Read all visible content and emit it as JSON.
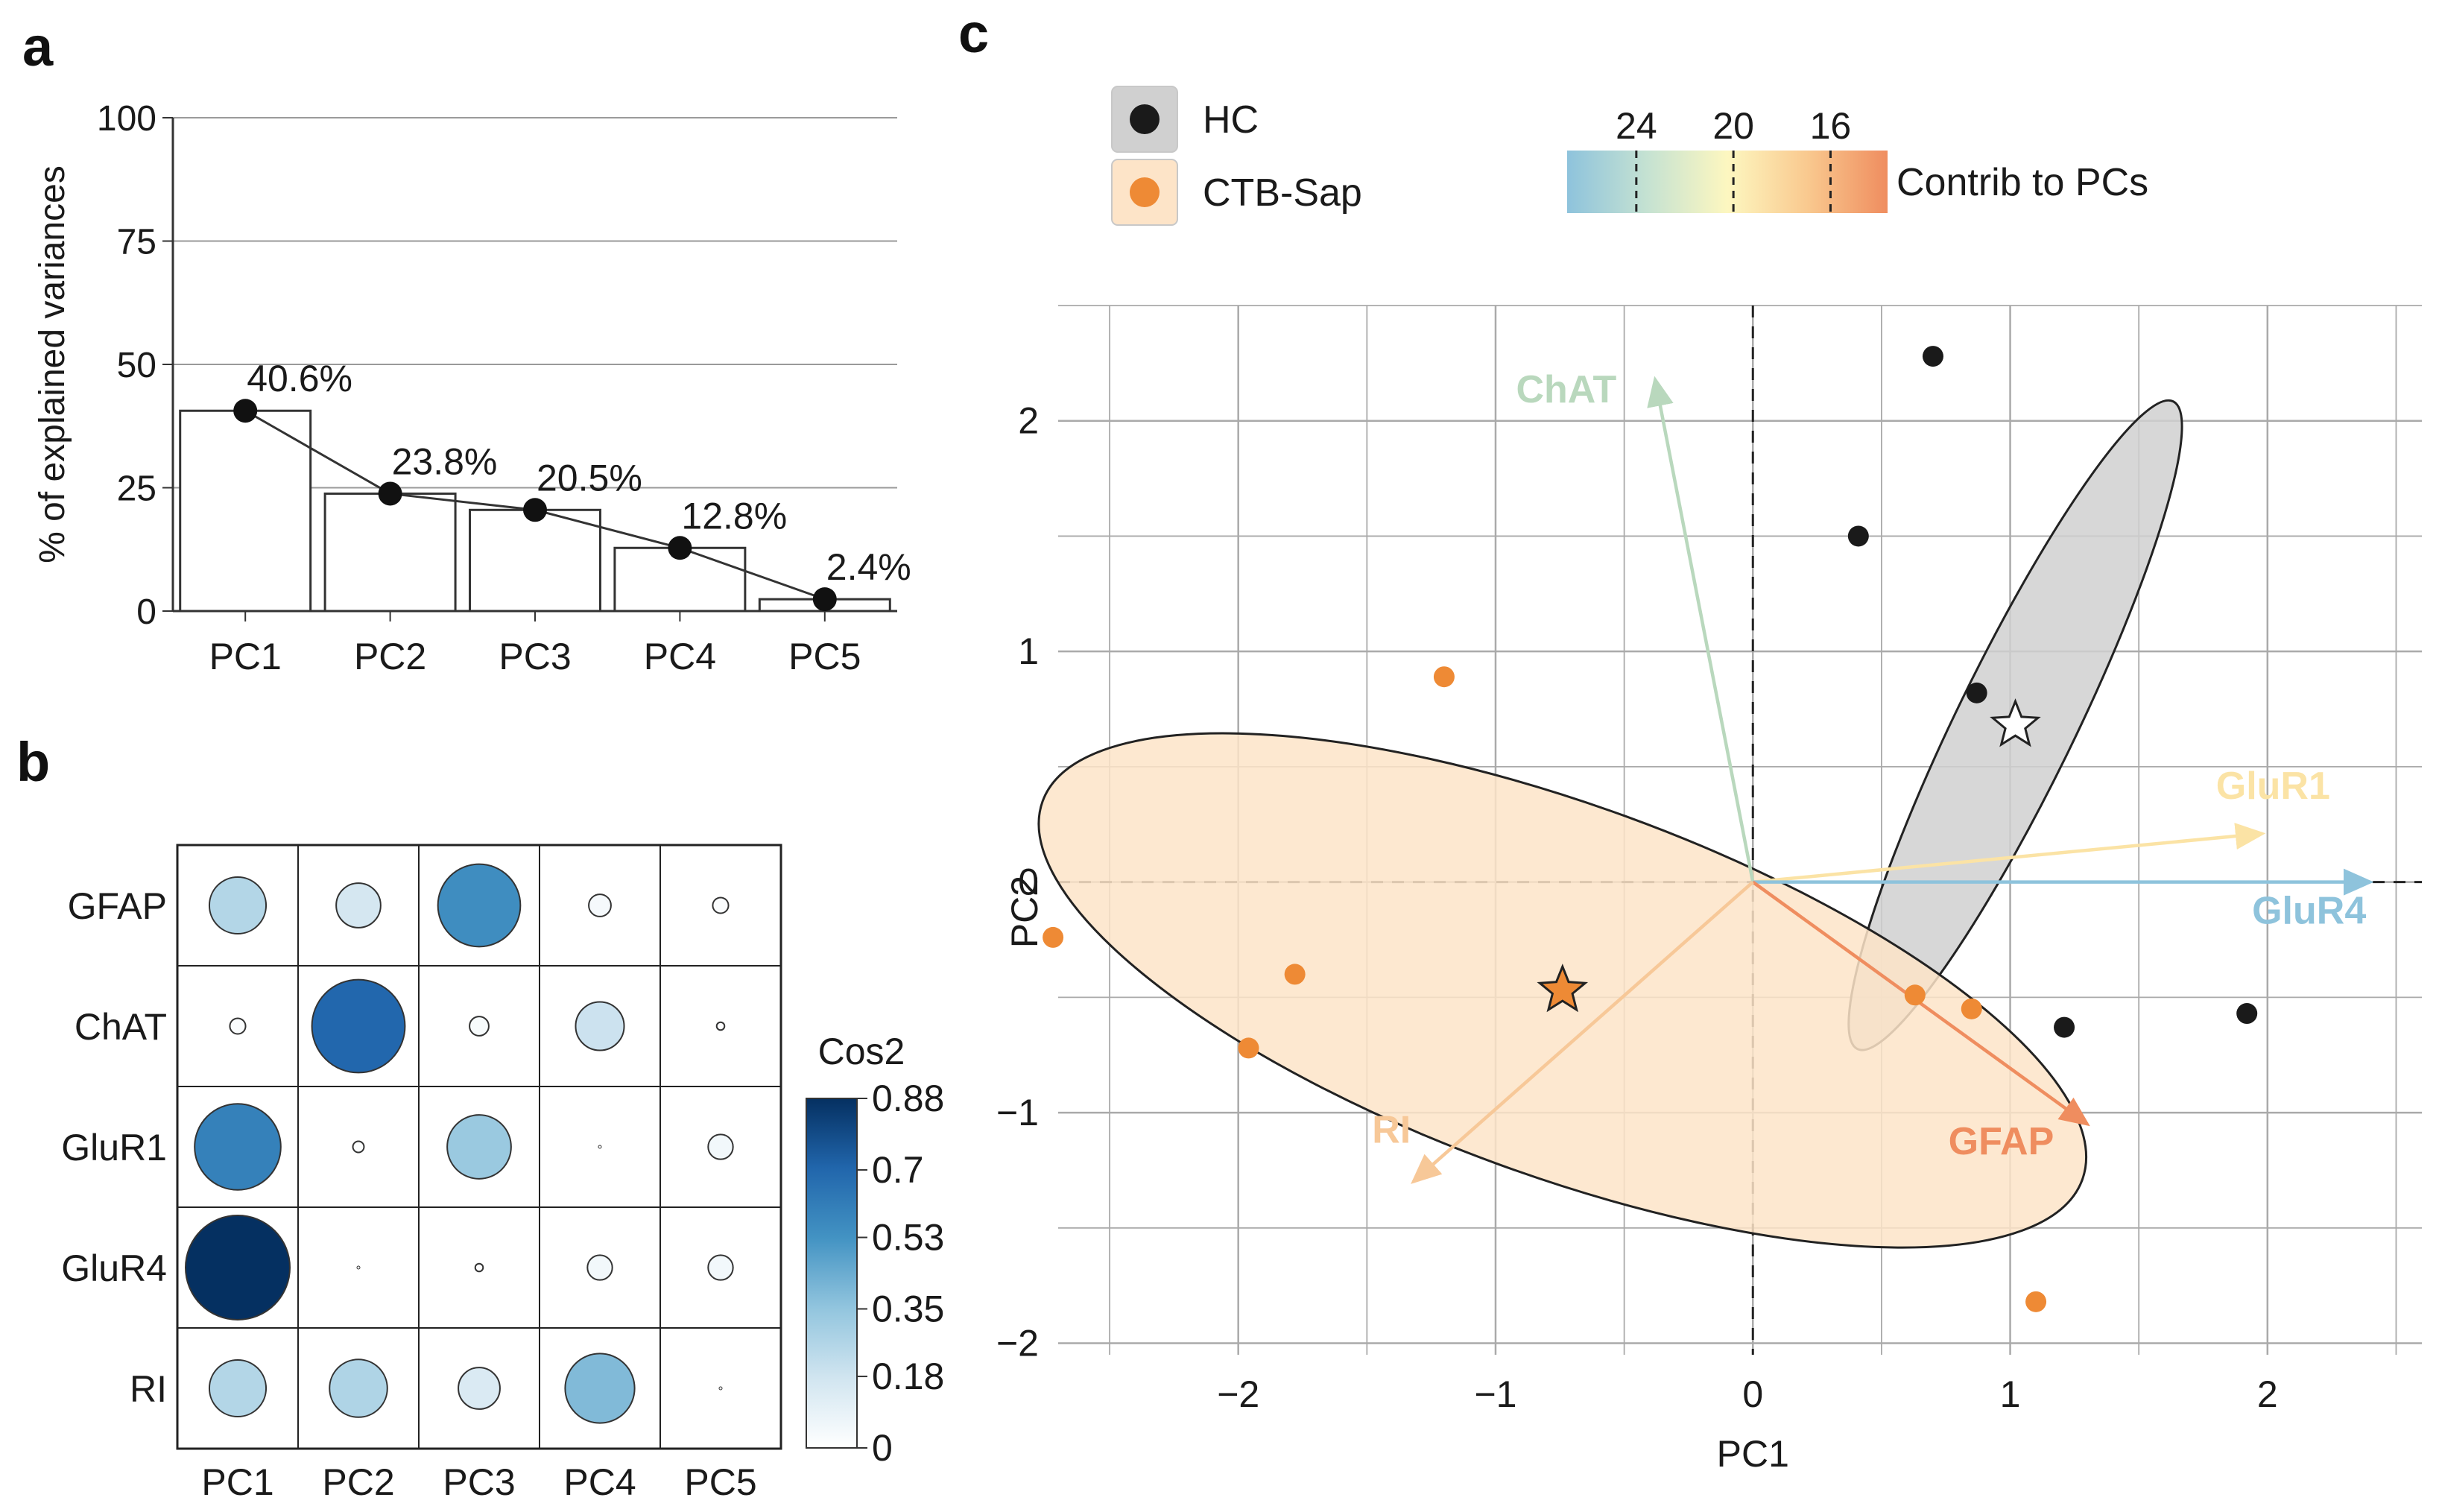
{
  "panel_labels": {
    "a": "a",
    "b": "b",
    "c": "c"
  },
  "chart_data": [
    {
      "panel": "a",
      "type": "bar",
      "ylabel": "% of explained variances",
      "xlabel": "",
      "ylim": [
        0,
        100
      ],
      "yticks": [
        0,
        25,
        50,
        75,
        100
      ],
      "grid": true,
      "categories": [
        "PC1",
        "PC2",
        "PC3",
        "PC4",
        "PC5"
      ],
      "values": [
        40.6,
        23.8,
        20.5,
        12.8,
        2.4
      ],
      "data_labels": [
        "40.6%",
        "23.8%",
        "20.5%",
        "12.8%",
        "2.4%"
      ],
      "overlay": "line with points"
    },
    {
      "panel": "b",
      "type": "heatmap",
      "style": "circle size and color encode value",
      "rows": [
        "GFAP",
        "ChAT",
        "GluR1",
        "GluR4",
        "RI"
      ],
      "cols": [
        "PC1",
        "PC2",
        "PC3",
        "PC4",
        "PC5"
      ],
      "values": [
        [
          0.26,
          0.16,
          0.55,
          0.04,
          0.02
        ],
        [
          0.02,
          0.7,
          0.03,
          0.19,
          0.005
        ],
        [
          0.6,
          0.01,
          0.33,
          0.0,
          0.05
        ],
        [
          0.88,
          0.0,
          0.005,
          0.05,
          0.05
        ],
        [
          0.26,
          0.27,
          0.14,
          0.39,
          0.0
        ]
      ],
      "colorbar_title": "Cos2",
      "colorbar_ticks": [
        0,
        0.18,
        0.35,
        0.53,
        0.7,
        0.88
      ],
      "colorbar_tick_labels": [
        "0",
        "0.18",
        "0.35",
        "0.53",
        "0.7",
        "0.88"
      ],
      "colors": [
        "#ffffff",
        "#d1e5f0",
        "#92c5de",
        "#4393c3",
        "#2166ac",
        "#053061"
      ]
    },
    {
      "panel": "c",
      "type": "scatter",
      "subtype": "PCA biplot",
      "xlabel": "PC1",
      "ylabel": "PC2",
      "xlim": [
        -2.7,
        2.6
      ],
      "ylim": [
        -2.05,
        2.5
      ],
      "xticks": [
        -2,
        -1,
        0,
        1,
        2
      ],
      "xtick_labels": [
        "−2",
        "−1",
        "0",
        "1",
        "2"
      ],
      "yticks": [
        -2,
        -1,
        0,
        1,
        2
      ],
      "ytick_labels": [
        "−2",
        "−1",
        "0",
        "1",
        "2"
      ],
      "grid": true,
      "legend_placement": "top-left",
      "groups": [
        {
          "name": "HC",
          "color": "#1a1a1a",
          "ellipse_fill": "#d0d0d0",
          "points": [
            [
              0.7,
              2.28
            ],
            [
              0.41,
              1.5
            ],
            [
              0.87,
              0.82
            ],
            [
              1.21,
              -0.63
            ],
            [
              1.92,
              -0.57
            ]
          ],
          "centroid": [
            1.02,
            0.68
          ],
          "ellipse": {
            "center": [
              1.02,
              0.68
            ],
            "major": 1.4,
            "minor": 0.23,
            "angle_deg": 64
          }
        },
        {
          "name": "CTB-Sap",
          "color": "#ee8a35",
          "ellipse_fill": "#fde4c8",
          "points": [
            [
              -1.2,
              0.89
            ],
            [
              -2.72,
              -0.24
            ],
            [
              -1.78,
              -0.4
            ],
            [
              -1.96,
              -0.72
            ],
            [
              0.63,
              -0.49
            ],
            [
              0.85,
              -0.55
            ],
            [
              1.1,
              -1.82
            ]
          ],
          "centroid": [
            -0.74,
            -0.47
          ],
          "ellipse": {
            "center": [
              -0.74,
              -0.47
            ],
            "major": 2.15,
            "minor": 0.72,
            "angle_deg": -20
          }
        }
      ],
      "variables": [
        {
          "name": "ChAT",
          "end": [
            -0.38,
            2.18
          ],
          "color": "#b9d8bd"
        },
        {
          "name": "GluR1",
          "end": [
            1.98,
            0.21
          ],
          "color": "#fbe3a5"
        },
        {
          "name": "GluR4",
          "end": [
            2.4,
            0.0
          ],
          "color": "#8ec3dc"
        },
        {
          "name": "GFAP",
          "end": [
            1.3,
            -1.05
          ],
          "color": "#ef8d5f"
        },
        {
          "name": "RI",
          "end": [
            -1.32,
            -1.3
          ],
          "color": "#f7c898"
        }
      ],
      "contrib_legend": {
        "title": "Contrib to PCs",
        "ticks": [
          24,
          20,
          16
        ],
        "tick_labels": [
          "24",
          "20",
          "16"
        ],
        "colors": [
          "#8ec3dc",
          "#c5e2d2",
          "#fdf7c0",
          "#f9c98f",
          "#ef8d5f"
        ]
      }
    }
  ]
}
